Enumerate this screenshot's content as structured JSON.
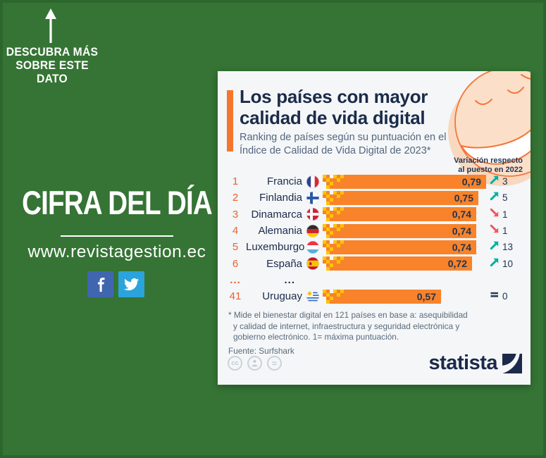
{
  "left_panel": {
    "cta_lines": [
      "DESCUBRA MÁS",
      "SOBRE ESTE",
      "DATO"
    ],
    "headline": "CIFRA DEL DÍA",
    "website": "www.revistagestion.ec",
    "social": [
      "facebook",
      "twitter"
    ]
  },
  "chart": {
    "title_lines": [
      "Los países con mayor",
      "calidad de vida digital"
    ],
    "subtitle_lines": [
      "Ranking de países según su puntuación en el",
      "Índice de Calidad de Vida Digital de 2023*"
    ],
    "variation_header_lines": [
      "Variación respecto",
      "al puesto en 2022"
    ],
    "rows": [
      {
        "rank": "1",
        "country": "Francia",
        "flag": "fr",
        "value": 0.79,
        "value_label": "0,79",
        "direction": "up",
        "change": "3"
      },
      {
        "rank": "2",
        "country": "Finlandia",
        "flag": "fi",
        "value": 0.75,
        "value_label": "0,75",
        "direction": "up",
        "change": "5"
      },
      {
        "rank": "3",
        "country": "Dinamarca",
        "flag": "dk",
        "value": 0.74,
        "value_label": "0,74",
        "direction": "down",
        "change": "1"
      },
      {
        "rank": "4",
        "country": "Alemania",
        "flag": "de",
        "value": 0.74,
        "value_label": "0,74",
        "direction": "down",
        "change": "1"
      },
      {
        "rank": "5",
        "country": "Luxemburgo",
        "flag": "lu",
        "value": 0.74,
        "value_label": "0,74",
        "direction": "up",
        "change": "13"
      },
      {
        "rank": "6",
        "country": "España",
        "flag": "es",
        "value": 0.72,
        "value_label": "0,72",
        "direction": "up",
        "change": "10"
      },
      {
        "gap": true,
        "rank": "...",
        "country": "..."
      },
      {
        "rank": "41",
        "country": "Uruguay",
        "flag": "uy",
        "value": 0.57,
        "value_label": "0,57",
        "direction": "same",
        "change": "0"
      }
    ],
    "footnote_lines": [
      "* Mide el bienestar digital en 121 países en base a: asequibilidad",
      "y calidad de internet, infraestructura y seguridad electrónica y",
      "gobierno electrónico. 1= máxima puntuación."
    ],
    "source": "Fuente: Surfshark",
    "license_icons": [
      "cc",
      "attribution",
      "equal"
    ],
    "brand": "statista"
  },
  "chart_data": {
    "type": "bar",
    "title": "Los países con mayor calidad de vida digital",
    "subtitle": "Ranking de países según su puntuación en el Índice de Calidad de Vida Digital de 2023*",
    "categories": [
      "Francia",
      "Finlandia",
      "Dinamarca",
      "Alemania",
      "Luxemburgo",
      "España",
      "Uruguay"
    ],
    "ranks": [
      1,
      2,
      3,
      4,
      5,
      6,
      41
    ],
    "values": [
      0.79,
      0.75,
      0.74,
      0.74,
      0.74,
      0.72,
      0.57
    ],
    "value_labels": [
      "0,79",
      "0,75",
      "0,74",
      "0,74",
      "0,74",
      "0,72",
      "0,57"
    ],
    "variation_vs_2022": [
      3,
      5,
      -1,
      -1,
      13,
      10,
      0
    ],
    "xlim": [
      0,
      0.8
    ],
    "orientation": "horizontal",
    "grid": false,
    "note": "* Mide el bienestar digital en 121 países en base a: asequibilidad y calidad de internet, infraestructura y seguridad electrónica y gobierno electrónico. 1= máxima puntuación.",
    "source": "Fuente: Surfshark"
  },
  "icons": {
    "arrow-up-icon": "↑",
    "facebook-icon": "f",
    "twitter-icon": "bird",
    "trend-up-icon": "↗",
    "trend-down-icon": "↘",
    "trend-equal-icon": "=",
    "cc-icon": "cc",
    "attribution-icon": "person",
    "equal-license-icon": "=",
    "smiley-face-illustration": "smiling face",
    "statista-logo-mark": "swoosh square"
  },
  "colors": {
    "background_green": "#357434",
    "card_background": "#f4f6f8",
    "bar_orange": "#f8832a",
    "pattern_yellow": "#fdc500",
    "accent_orange": "#f5752c",
    "navy_text": "#1b2b4a",
    "subtitle_gray": "#54677e",
    "rank_orange": "#e8642e",
    "trend_up_teal": "#00b0a0",
    "trend_down_red": "#f1575f",
    "facebook_blue": "#4166b0",
    "twitter_blue": "#2ba3dc",
    "face_peach": "#fcdfc8",
    "face_outline": "#f3763a"
  }
}
